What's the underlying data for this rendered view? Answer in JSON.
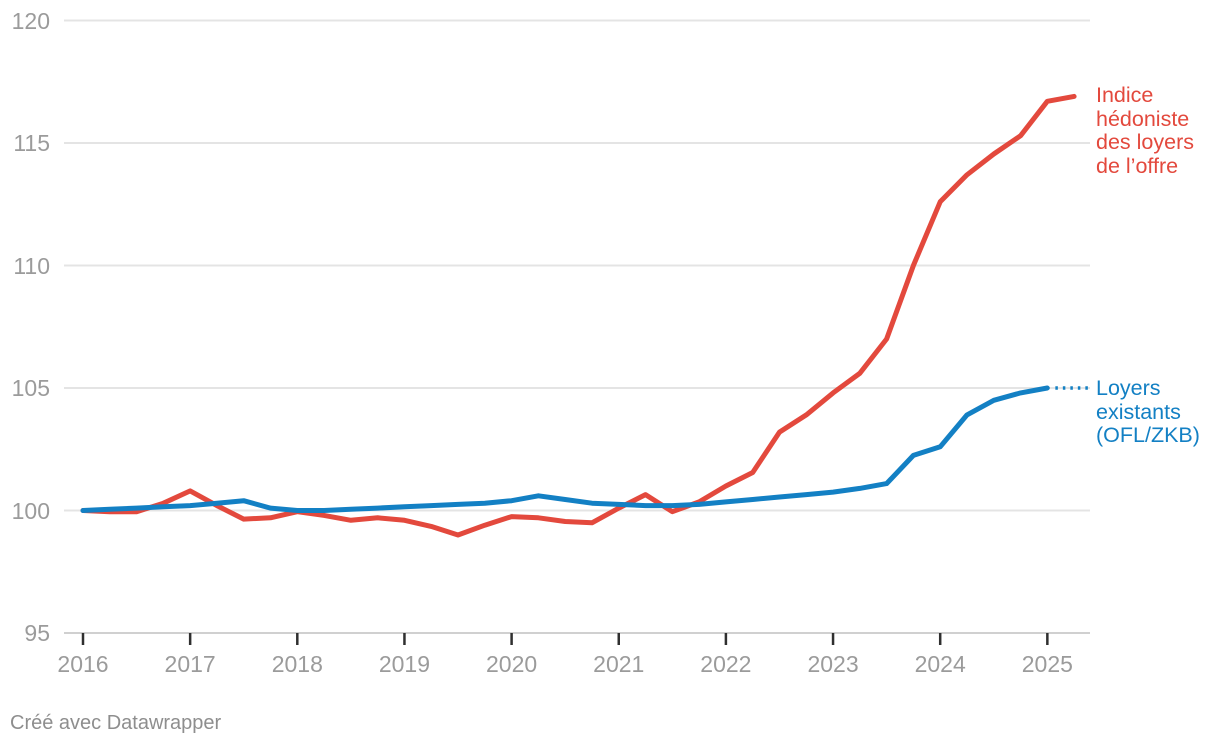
{
  "chart_data": {
    "type": "line",
    "title": "",
    "xlabel": "",
    "ylabel": "",
    "ylim": [
      95,
      120
    ],
    "xlim": [
      2016,
      2025.4
    ],
    "yticks": [
      95,
      100,
      105,
      110,
      115,
      120
    ],
    "xticks": [
      2016,
      2017,
      2018,
      2019,
      2020,
      2021,
      2022,
      2023,
      2024,
      2025
    ],
    "grid": "horizontal-only",
    "legend_position": "inline-labels-right",
    "x_unit": "year, quarterly data points",
    "series": [
      {
        "id": "offre",
        "name": "Indice hédoniste des loyers de l'offre",
        "label": "Indice\nhédoniste\ndes loyers\nde l’offre",
        "color": "#e3493d",
        "x": [
          2016.0,
          2016.25,
          2016.5,
          2016.75,
          2017.0,
          2017.25,
          2017.5,
          2017.75,
          2018.0,
          2018.25,
          2018.5,
          2018.75,
          2019.0,
          2019.25,
          2019.5,
          2019.75,
          2020.0,
          2020.25,
          2020.5,
          2020.75,
          2021.0,
          2021.25,
          2021.5,
          2021.75,
          2022.0,
          2022.25,
          2022.5,
          2022.75,
          2023.0,
          2023.25,
          2023.5,
          2023.75,
          2024.0,
          2024.25,
          2024.5,
          2024.75,
          2025.0,
          2025.25
        ],
        "values": [
          100.0,
          99.95,
          99.95,
          100.3,
          100.8,
          100.2,
          99.65,
          99.7,
          99.95,
          99.8,
          99.6,
          99.7,
          99.6,
          99.35,
          99.0,
          99.4,
          99.75,
          99.7,
          99.55,
          99.5,
          100.1,
          100.65,
          99.95,
          100.35,
          101.0,
          101.55,
          103.2,
          103.9,
          104.8,
          105.6,
          107.0,
          110.0,
          112.6,
          113.7,
          114.55,
          115.3,
          116.7,
          116.9
        ],
        "connector": "none"
      },
      {
        "id": "existants",
        "name": "Loyers existants (OFL/ZKB)",
        "label": "Loyers\nexistants\n(OFL/ZKB)",
        "color": "#1380c4",
        "x": [
          2016.0,
          2016.25,
          2016.5,
          2016.75,
          2017.0,
          2017.25,
          2017.5,
          2017.75,
          2018.0,
          2018.25,
          2018.5,
          2018.75,
          2019.0,
          2019.25,
          2019.5,
          2019.75,
          2020.0,
          2020.25,
          2020.5,
          2020.75,
          2021.0,
          2021.25,
          2021.5,
          2021.75,
          2022.0,
          2022.25,
          2022.5,
          2022.75,
          2023.0,
          2023.25,
          2023.5,
          2023.75,
          2024.0,
          2024.25,
          2024.5,
          2024.75,
          2025.0
        ],
        "values": [
          100.0,
          100.05,
          100.1,
          100.15,
          100.2,
          100.3,
          100.4,
          100.1,
          100.0,
          100.0,
          100.05,
          100.1,
          100.15,
          100.2,
          100.25,
          100.3,
          100.4,
          100.6,
          100.45,
          100.3,
          100.25,
          100.2,
          100.2,
          100.25,
          100.35,
          100.45,
          100.55,
          100.65,
          100.75,
          100.9,
          101.1,
          102.25,
          102.6,
          103.9,
          104.5,
          104.8,
          105.0
        ],
        "connector": "dotted"
      }
    ]
  },
  "colors": {
    "red_line": "#e3493d",
    "blue_line": "#1380c4",
    "gridline": "#e4e4e4",
    "baseline": "#d0d0d0",
    "tick": "#2f2f2f",
    "axis_text": "#9b9b9b",
    "footer_text": "#8e8e8e"
  },
  "footer": {
    "credit": "Créé avec Datawrapper"
  }
}
